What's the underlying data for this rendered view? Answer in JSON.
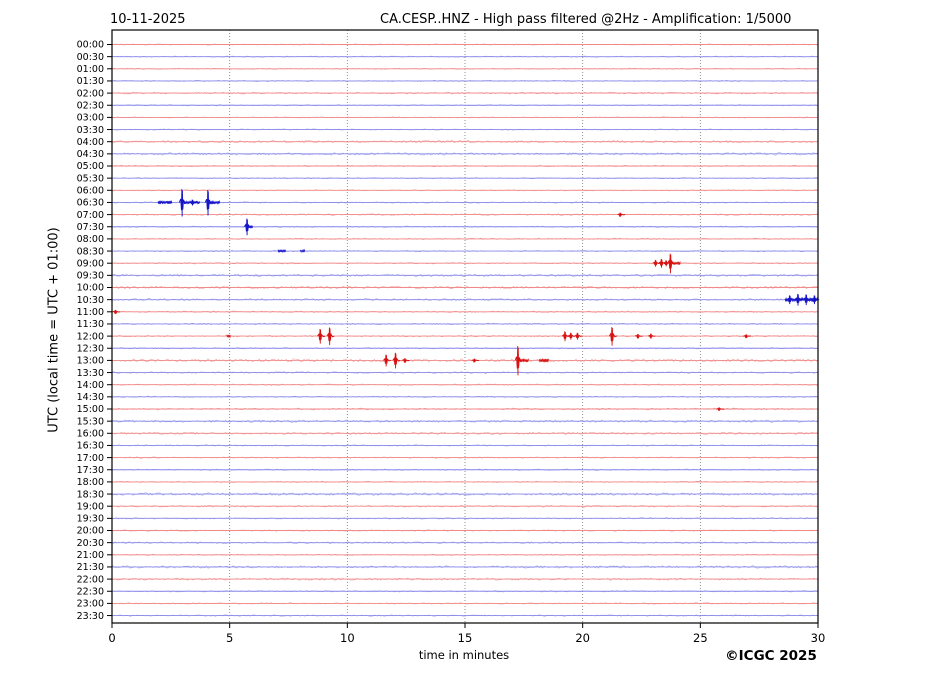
{
  "header": {
    "date": "10-11-2025",
    "title": "CA.CESP..HNZ - High pass filtered @2Hz - Amplification: 1/5000"
  },
  "footer": {
    "copyright": "©ICGC 2025"
  },
  "chart_data": {
    "type": "line",
    "subtype": "helicorder-seismogram",
    "title": "CA.CESP..HNZ - High pass filtered @2Hz - Amplification: 1/5000",
    "date_label": "10-11-2025",
    "xlabel": "time in minutes",
    "ylabel": "UTC (local time = UTC + 01:00)",
    "xlim": [
      0,
      30
    ],
    "x_ticks": [
      0,
      5,
      10,
      15,
      20,
      25,
      30
    ],
    "grid_minutes": [
      5,
      10,
      15,
      20,
      25
    ],
    "grid": "vertical dotted gridlines only",
    "legend": "none",
    "palette": {
      "red_light": "#f08383",
      "red_strong": "#d81111",
      "blue_light": "#8585e8",
      "blue_strong": "#1414c8",
      "grid": "#777777",
      "frame": "#000000"
    },
    "row_color_rule": "rows on the hour are red, rows on the half-hour are blue",
    "rows": [
      {
        "label": "00:00",
        "color": "red",
        "noise": 0.6
      },
      {
        "label": "00:30",
        "color": "blue",
        "noise": 0.6
      },
      {
        "label": "01:00",
        "color": "red",
        "noise": 0.6
      },
      {
        "label": "01:30",
        "color": "blue",
        "noise": 0.7
      },
      {
        "label": "02:00",
        "color": "red",
        "noise": 0.9
      },
      {
        "label": "02:30",
        "color": "blue",
        "noise": 0.6
      },
      {
        "label": "03:00",
        "color": "red",
        "noise": 0.6
      },
      {
        "label": "03:30",
        "color": "blue",
        "noise": 0.6
      },
      {
        "label": "04:00",
        "color": "red",
        "noise": 1.2
      },
      {
        "label": "04:30",
        "color": "blue",
        "noise": 1.2
      },
      {
        "label": "05:00",
        "color": "red",
        "noise": 0.7
      },
      {
        "label": "05:30",
        "color": "blue",
        "noise": 0.6
      },
      {
        "label": "06:00",
        "color": "red",
        "noise": 0.6
      },
      {
        "label": "06:30",
        "color": "blue",
        "noise": 0.7
      },
      {
        "label": "07:00",
        "color": "red",
        "noise": 0.8
      },
      {
        "label": "07:30",
        "color": "blue",
        "noise": 0.7
      },
      {
        "label": "08:00",
        "color": "red",
        "noise": 0.7
      },
      {
        "label": "08:30",
        "color": "blue",
        "noise": 0.7
      },
      {
        "label": "09:00",
        "color": "red",
        "noise": 0.7
      },
      {
        "label": "09:30",
        "color": "blue",
        "noise": 1.1
      },
      {
        "label": "10:00",
        "color": "red",
        "noise": 1.3
      },
      {
        "label": "10:30",
        "color": "blue",
        "noise": 1.0
      },
      {
        "label": "11:00",
        "color": "red",
        "noise": 0.8
      },
      {
        "label": "11:30",
        "color": "blue",
        "noise": 0.8
      },
      {
        "label": "12:00",
        "color": "red",
        "noise": 0.8
      },
      {
        "label": "12:30",
        "color": "blue",
        "noise": 0.7
      },
      {
        "label": "13:00",
        "color": "red",
        "noise": 1.5
      },
      {
        "label": "13:30",
        "color": "blue",
        "noise": 0.8
      },
      {
        "label": "14:00",
        "color": "red",
        "noise": 0.7
      },
      {
        "label": "14:30",
        "color": "blue",
        "noise": 0.7
      },
      {
        "label": "15:00",
        "color": "red",
        "noise": 0.9
      },
      {
        "label": "15:30",
        "color": "blue",
        "noise": 1.2
      },
      {
        "label": "16:00",
        "color": "red",
        "noise": 1.1
      },
      {
        "label": "16:30",
        "color": "blue",
        "noise": 0.7
      },
      {
        "label": "17:00",
        "color": "red",
        "noise": 0.7
      },
      {
        "label": "17:30",
        "color": "blue",
        "noise": 0.7
      },
      {
        "label": "18:00",
        "color": "red",
        "noise": 0.7
      },
      {
        "label": "18:30",
        "color": "blue",
        "noise": 1.2
      },
      {
        "label": "19:00",
        "color": "red",
        "noise": 0.9
      },
      {
        "label": "19:30",
        "color": "blue",
        "noise": 0.7
      },
      {
        "label": "20:00",
        "color": "red",
        "noise": 0.7
      },
      {
        "label": "20:30",
        "color": "blue",
        "noise": 0.9
      },
      {
        "label": "21:00",
        "color": "red",
        "noise": 0.7
      },
      {
        "label": "21:30",
        "color": "blue",
        "noise": 1.2
      },
      {
        "label": "22:00",
        "color": "red",
        "noise": 1.1
      },
      {
        "label": "22:30",
        "color": "blue",
        "noise": 0.7
      },
      {
        "label": "23:00",
        "color": "red",
        "noise": 0.7
      },
      {
        "label": "23:30",
        "color": "blue",
        "noise": 0.7
      }
    ],
    "events": [
      {
        "row": 13,
        "type": "burst",
        "t0": 1.95,
        "t1": 2.55,
        "amp": 1.8
      },
      {
        "row": 13,
        "type": "spike",
        "t": 2.98,
        "amp": 14
      },
      {
        "row": 13,
        "type": "burst",
        "t0": 3.05,
        "t1": 3.75,
        "amp": 1.6
      },
      {
        "row": 13,
        "type": "spike",
        "t": 3.42,
        "amp": 3
      },
      {
        "row": 13,
        "type": "spike",
        "t": 4.08,
        "amp": 13
      },
      {
        "row": 13,
        "type": "burst",
        "t0": 4.12,
        "t1": 4.6,
        "amp": 1.8
      },
      {
        "row": 14,
        "type": "spike",
        "t": 21.6,
        "amp": 2
      },
      {
        "row": 15,
        "type": "spike",
        "t": 5.74,
        "amp": 8.5
      },
      {
        "row": 15,
        "type": "burst",
        "t0": 5.78,
        "t1": 6.0,
        "amp": 1.4
      },
      {
        "row": 17,
        "type": "burst",
        "t0": 7.05,
        "t1": 7.4,
        "amp": 1.5
      },
      {
        "row": 17,
        "type": "burst",
        "t0": 8.0,
        "t1": 8.2,
        "amp": 1.3
      },
      {
        "row": 18,
        "type": "spike",
        "t": 23.1,
        "amp": 3.5
      },
      {
        "row": 18,
        "type": "spike",
        "t": 23.35,
        "amp": 4.5
      },
      {
        "row": 18,
        "type": "spike",
        "t": 23.55,
        "amp": 3
      },
      {
        "row": 18,
        "type": "spike",
        "t": 23.73,
        "amp": 10
      },
      {
        "row": 18,
        "type": "burst",
        "t0": 23.75,
        "t1": 24.15,
        "amp": 1.8
      },
      {
        "row": 21,
        "type": "burst",
        "t0": 28.6,
        "t1": 30.0,
        "amp": 2.2
      },
      {
        "row": 21,
        "type": "spike",
        "t": 28.8,
        "amp": 4.5
      },
      {
        "row": 21,
        "type": "spike",
        "t": 29.15,
        "amp": 6
      },
      {
        "row": 21,
        "type": "spike",
        "t": 29.5,
        "amp": 5.5
      },
      {
        "row": 21,
        "type": "spike",
        "t": 29.85,
        "amp": 4.5
      },
      {
        "row": 22,
        "type": "spike",
        "t": 0.15,
        "amp": 2
      },
      {
        "row": 24,
        "type": "burst",
        "t0": 4.88,
        "t1": 5.05,
        "amp": 2.2
      },
      {
        "row": 24,
        "type": "spike",
        "t": 8.85,
        "amp": 7.5
      },
      {
        "row": 24,
        "type": "spike",
        "t": 9.25,
        "amp": 9
      },
      {
        "row": 24,
        "type": "spike",
        "t": 19.25,
        "amp": 5
      },
      {
        "row": 24,
        "type": "spike",
        "t": 19.5,
        "amp": 3.5
      },
      {
        "row": 24,
        "type": "spike",
        "t": 19.78,
        "amp": 3.5
      },
      {
        "row": 24,
        "type": "spike",
        "t": 21.25,
        "amp": 9.5
      },
      {
        "row": 24,
        "type": "spike",
        "t": 22.35,
        "amp": 2.2
      },
      {
        "row": 24,
        "type": "spike",
        "t": 22.9,
        "amp": 2.6
      },
      {
        "row": 24,
        "type": "spike",
        "t": 26.95,
        "amp": 1.8
      },
      {
        "row": 26,
        "type": "spike",
        "t": 11.65,
        "amp": 6
      },
      {
        "row": 26,
        "type": "spike",
        "t": 12.05,
        "amp": 8
      },
      {
        "row": 26,
        "type": "spike",
        "t": 12.45,
        "amp": 2.2
      },
      {
        "row": 26,
        "type": "spike",
        "t": 15.4,
        "amp": 1.8
      },
      {
        "row": 26,
        "type": "spike",
        "t": 17.25,
        "amp": 15
      },
      {
        "row": 26,
        "type": "burst",
        "t0": 17.3,
        "t1": 17.7,
        "amp": 2.0
      },
      {
        "row": 26,
        "type": "burst",
        "t0": 18.15,
        "t1": 18.55,
        "amp": 2.0
      },
      {
        "row": 30,
        "type": "spike",
        "t": 25.8,
        "amp": 1.6
      }
    ]
  }
}
